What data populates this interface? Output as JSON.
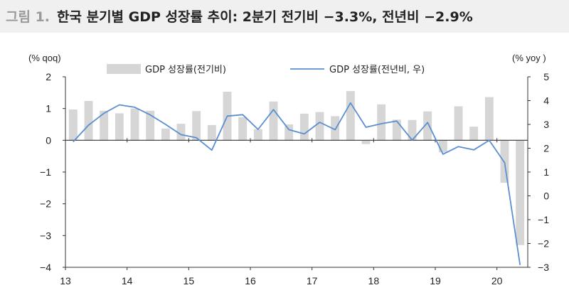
{
  "figure_label": "그림 1.",
  "title": "한국 분기별 GDP 성장률 추이: 2분기 전기비 −3.3%, 전년비 −2.9%",
  "chart_data": {
    "type": "bar+line",
    "left_unit": "(% qoq)",
    "right_unit": "(% yoy )",
    "left_ylim": [
      -4,
      2
    ],
    "right_ylim": [
      -3,
      5
    ],
    "left_ticks": [
      "2",
      "1",
      "0",
      "−1",
      "−2",
      "−3",
      "−4"
    ],
    "right_ticks": [
      "5",
      "4",
      "3",
      "2",
      "1",
      "0",
      "−1",
      "−2",
      "−3"
    ],
    "x_ticks": [
      "13",
      "14",
      "15",
      "16",
      "17",
      "18",
      "19",
      "20"
    ],
    "grid": false,
    "legend_position": "top",
    "series": [
      {
        "name": "GDP 성장률(전기비)",
        "type": "bar",
        "axis": "left",
        "color": "#d6d6d6",
        "values": [
          0.97,
          1.24,
          0.93,
          0.85,
          1.0,
          0.93,
          0.37,
          0.52,
          0.92,
          0.48,
          1.53,
          0.73,
          0.35,
          1.22,
          0.5,
          0.84,
          0.89,
          0.76,
          1.55,
          -0.12,
          1.13,
          0.65,
          0.64,
          0.91,
          -0.38,
          1.07,
          0.43,
          1.36,
          -1.34,
          -3.3
        ]
      },
      {
        "name": "GDP 성장률(전년비, 우)",
        "type": "line",
        "axis": "right",
        "color": "#5a8fd0",
        "values": [
          2.27,
          2.97,
          3.47,
          3.82,
          3.72,
          3.4,
          3.0,
          2.57,
          2.44,
          1.92,
          3.35,
          3.41,
          2.79,
          3.62,
          2.78,
          2.6,
          3.09,
          2.78,
          3.9,
          2.88,
          3.03,
          3.14,
          2.34,
          3.08,
          1.75,
          2.07,
          1.93,
          2.33,
          1.39,
          -2.9
        ]
      }
    ]
  }
}
